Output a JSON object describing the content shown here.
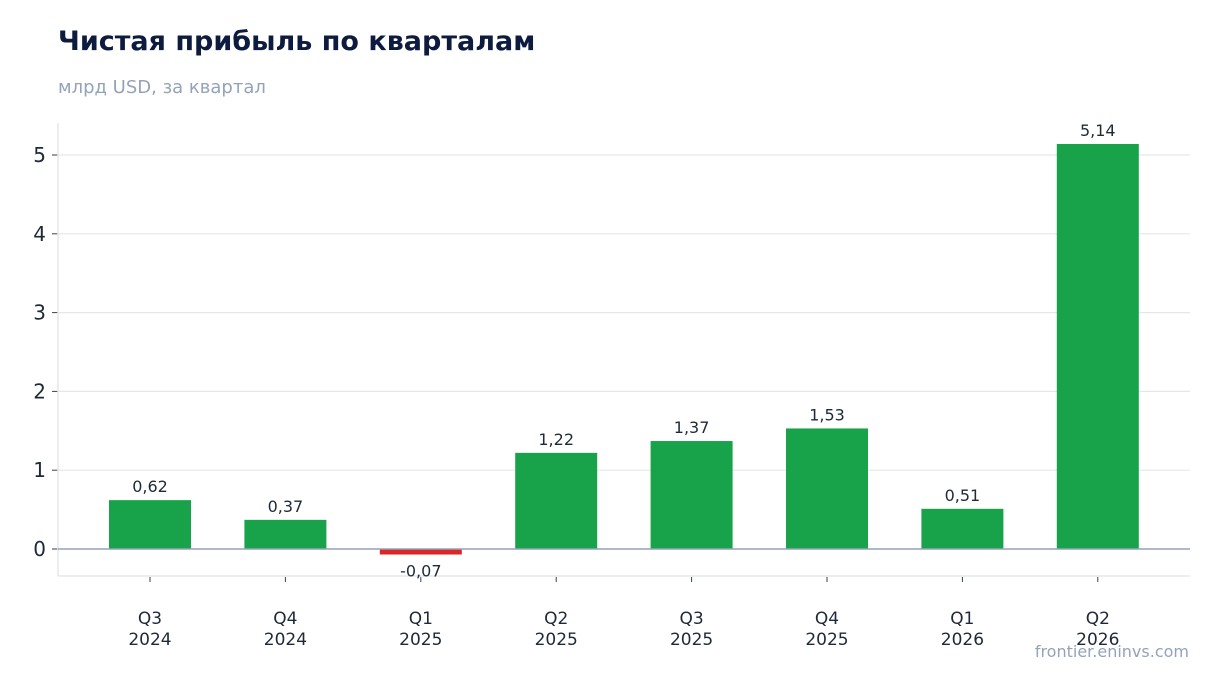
{
  "chart_data": {
    "type": "bar",
    "title": "Чистая прибыль по кварталам",
    "subtitle": "млрд USD, за квартал",
    "categories": [
      [
        "Q3",
        "2024"
      ],
      [
        "Q4",
        "2024"
      ],
      [
        "Q1",
        "2025"
      ],
      [
        "Q2",
        "2025"
      ],
      [
        "Q3",
        "2025"
      ],
      [
        "Q4",
        "2025"
      ],
      [
        "Q1",
        "2026"
      ],
      [
        "Q2",
        "2026"
      ]
    ],
    "values": [
      0.62,
      0.37,
      -0.07,
      1.22,
      1.37,
      1.53,
      0.51,
      5.14
    ],
    "value_labels": [
      "0,62",
      "0,37",
      "-0,07",
      "1,22",
      "1,37",
      "1,53",
      "0,51",
      "5,14"
    ],
    "yticks": [
      0,
      1,
      2,
      3,
      4,
      5
    ],
    "ylim": [
      -0.34,
      5.4
    ],
    "grid": true,
    "colors": {
      "positive": "#18a34a",
      "negative": "#dc2626",
      "zero_line": "#94a3b8",
      "grid": "#e5e7eb",
      "text": "#1f2937"
    }
  },
  "footer": {
    "watermark": "frontier.eninvs.com"
  }
}
